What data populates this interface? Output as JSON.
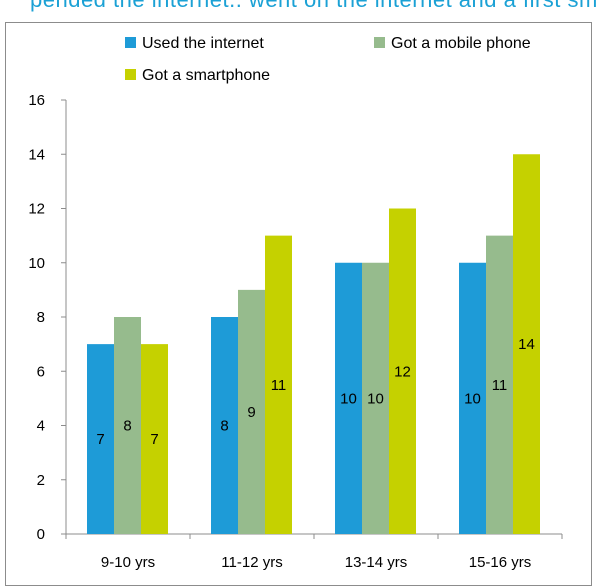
{
  "header_text": "pended the internet.. went on the internet and a first smartphone at what age",
  "chart_data": {
    "type": "bar",
    "categories": [
      "9-10 yrs",
      "11-12 yrs",
      "13-14 yrs",
      "15-16 yrs"
    ],
    "series": [
      {
        "name": "Used the internet",
        "values": [
          7,
          8,
          10,
          10
        ],
        "color": "#1E9BD7"
      },
      {
        "name": "Got a mobile phone",
        "values": [
          8,
          9,
          10,
          11
        ],
        "color": "#96BB8D"
      },
      {
        "name": "Got a smartphone",
        "values": [
          7,
          11,
          12,
          14
        ],
        "color": "#C5D100"
      }
    ],
    "ylim": [
      0,
      16
    ],
    "yticks": [
      0,
      2,
      4,
      6,
      8,
      10,
      12,
      14,
      16
    ],
    "legend_position": "top",
    "grid": false
  }
}
